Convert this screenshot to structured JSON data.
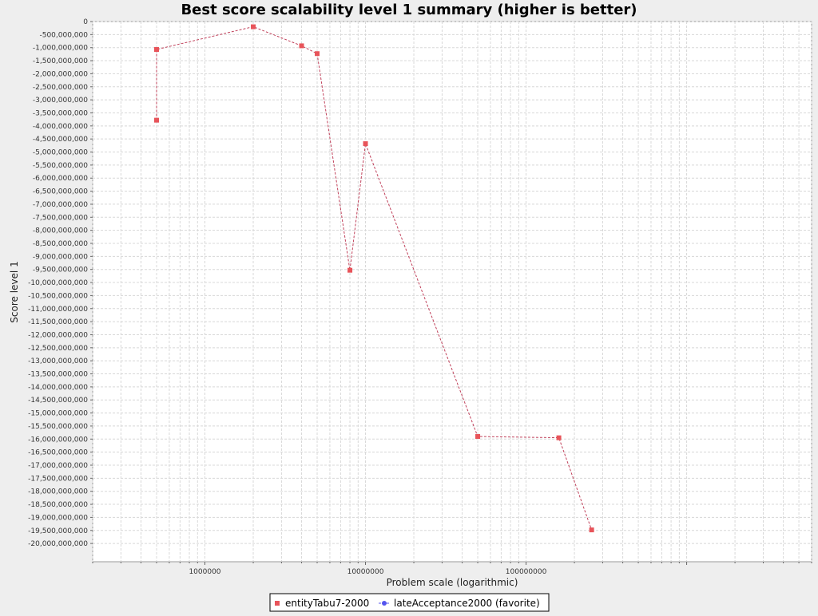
{
  "chart_data": {
    "type": "line",
    "title": "Best score scalability level 1 summary (higher is better)",
    "xlabel": "Problem scale (logarithmic)",
    "ylabel": "Score level 1",
    "x_scale": "log",
    "xlim": [
      200000,
      6000000000
    ],
    "ylim": [
      -20700000000,
      0
    ],
    "y_tick_step": 500000000,
    "x_tick_labels": [
      {
        "value": 1000000,
        "label": "1000000"
      },
      {
        "value": 10000000,
        "label": "10000000"
      },
      {
        "value": 100000000,
        "label": "100000000"
      }
    ],
    "grid": true,
    "legend_position": "bottom-center",
    "series": [
      {
        "name": "entityTabu7-2000",
        "color": "#e8545a",
        "marker": "square",
        "points": [
          {
            "x": 500000,
            "y": -3780000000
          },
          {
            "x": 500000,
            "y": -1070000000
          },
          {
            "x": 2000000,
            "y": -200000000
          },
          {
            "x": 4000000,
            "y": -930000000
          },
          {
            "x": 5000000,
            "y": -1230000000
          },
          {
            "x": 8000000,
            "y": -9530000000
          },
          {
            "x": 10000000,
            "y": -4680000000
          },
          {
            "x": 50000000,
            "y": -15900000000
          },
          {
            "x": 160000000,
            "y": -15950000000
          },
          {
            "x": 256000000,
            "y": -19480000000
          }
        ]
      },
      {
        "name": "lateAcceptance2000 (favorite)",
        "color": "#5555ee",
        "marker": "circle",
        "points": []
      }
    ]
  }
}
